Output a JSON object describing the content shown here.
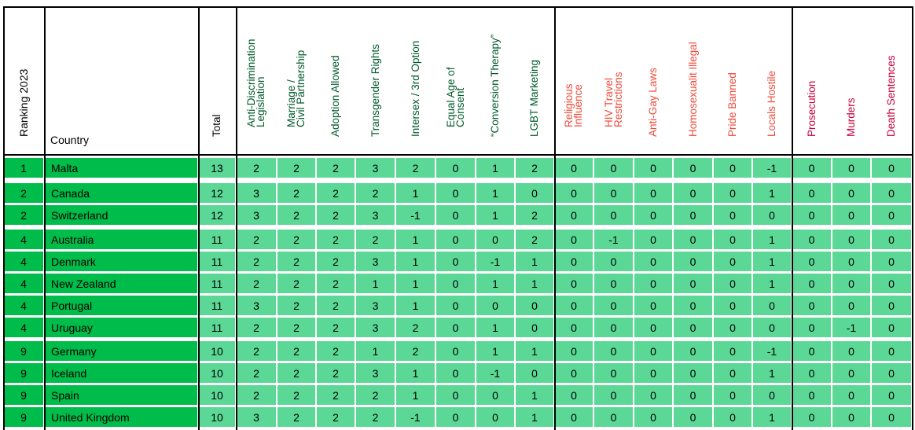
{
  "colors": {
    "dark_green": "#00BC4A",
    "light_green": "#5BD896",
    "header_green": "#005A2A",
    "header_orange": "#F04A3A",
    "header_crimson": "#C8003C"
  },
  "columns": [
    {
      "label": "Ranking 2023",
      "color": "#000000"
    },
    {
      "label": "Country",
      "color": "#000000"
    },
    {
      "label": "Total",
      "color": "#000000"
    },
    {
      "label": "Anti-Discrimination\nLegislation",
      "color": "#005A2A"
    },
    {
      "label": "Marriage /\nCivil Partnership",
      "color": "#005A2A"
    },
    {
      "label": "Adoption Allowed",
      "color": "#005A2A"
    },
    {
      "label": "Transgender Rights",
      "color": "#005A2A"
    },
    {
      "label": "Intersex / 3rd Option",
      "color": "#005A2A"
    },
    {
      "label": "Equal Age of\nConsent",
      "color": "#005A2A"
    },
    {
      "label": "“Conversion Therapy”",
      "color": "#005A2A"
    },
    {
      "label": "LGBT Marketing",
      "color": "#005A2A"
    },
    {
      "label": "Religious\nInfluence",
      "color": "#F04A3A"
    },
    {
      "label": "HIV Travel\nRestrictions",
      "color": "#F04A3A"
    },
    {
      "label": "Anti-Gay Laws",
      "color": "#F04A3A"
    },
    {
      "label": "Homosexualit Illegal",
      "color": "#F04A3A"
    },
    {
      "label": "Pride Banned",
      "color": "#F04A3A"
    },
    {
      "label": "Locals Hostile",
      "color": "#F04A3A"
    },
    {
      "label": "Prosecution",
      "color": "#C8003C"
    },
    {
      "label": "Murders",
      "color": "#C8003C"
    },
    {
      "label": "Death Sentences",
      "color": "#C8003C"
    }
  ],
  "rows": [
    {
      "rank": "1",
      "country": "Malta",
      "total": "13",
      "values": [
        "2",
        "2",
        "2",
        "3",
        "2",
        "0",
        "1",
        "2",
        "0",
        "0",
        "0",
        "0",
        "0",
        "-1",
        "0",
        "0",
        "0"
      ]
    },
    {
      "rank": "2",
      "country": "Canada",
      "total": "12",
      "values": [
        "3",
        "2",
        "2",
        "2",
        "1",
        "0",
        "1",
        "0",
        "0",
        "0",
        "0",
        "0",
        "0",
        "1",
        "0",
        "0",
        "0"
      ]
    },
    {
      "rank": "2",
      "country": "Switzerland",
      "total": "12",
      "values": [
        "3",
        "2",
        "2",
        "3",
        "-1",
        "0",
        "1",
        "2",
        "0",
        "0",
        "0",
        "0",
        "0",
        "0",
        "0",
        "0",
        "0"
      ]
    },
    {
      "rank": "4",
      "country": "Australia",
      "total": "11",
      "values": [
        "2",
        "2",
        "2",
        "2",
        "1",
        "0",
        "0",
        "2",
        "0",
        "-1",
        "0",
        "0",
        "0",
        "1",
        "0",
        "0",
        "0"
      ]
    },
    {
      "rank": "4",
      "country": "Denmark",
      "total": "11",
      "values": [
        "2",
        "2",
        "2",
        "3",
        "1",
        "0",
        "-1",
        "1",
        "0",
        "0",
        "0",
        "0",
        "0",
        "1",
        "0",
        "0",
        "0"
      ]
    },
    {
      "rank": "4",
      "country": "New Zealand",
      "total": "11",
      "values": [
        "2",
        "2",
        "2",
        "1",
        "1",
        "0",
        "1",
        "1",
        "0",
        "0",
        "0",
        "0",
        "0",
        "1",
        "0",
        "0",
        "0"
      ]
    },
    {
      "rank": "4",
      "country": "Portugal",
      "total": "11",
      "values": [
        "3",
        "2",
        "2",
        "3",
        "1",
        "0",
        "0",
        "0",
        "0",
        "0",
        "0",
        "0",
        "0",
        "0",
        "0",
        "0",
        "0"
      ]
    },
    {
      "rank": "4",
      "country": "Uruguay",
      "total": "11",
      "values": [
        "2",
        "2",
        "2",
        "3",
        "2",
        "0",
        "1",
        "0",
        "0",
        "0",
        "0",
        "0",
        "0",
        "0",
        "0",
        "-1",
        "0"
      ]
    },
    {
      "rank": "9",
      "country": "Germany",
      "total": "10",
      "values": [
        "2",
        "2",
        "2",
        "1",
        "2",
        "0",
        "1",
        "1",
        "0",
        "0",
        "0",
        "0",
        "0",
        "-1",
        "0",
        "0",
        "0"
      ]
    },
    {
      "rank": "9",
      "country": "Iceland",
      "total": "10",
      "values": [
        "2",
        "2",
        "2",
        "3",
        "1",
        "0",
        "-1",
        "0",
        "0",
        "0",
        "0",
        "0",
        "0",
        "1",
        "0",
        "0",
        "0"
      ]
    },
    {
      "rank": "9",
      "country": "Spain",
      "total": "10",
      "values": [
        "2",
        "2",
        "2",
        "2",
        "1",
        "0",
        "0",
        "1",
        "0",
        "0",
        "0",
        "0",
        "0",
        "0",
        "0",
        "0",
        "0"
      ]
    },
    {
      "rank": "9",
      "country": "United Kingdom",
      "total": "10",
      "values": [
        "3",
        "2",
        "2",
        "2",
        "-1",
        "0",
        "0",
        "1",
        "0",
        "0",
        "0",
        "0",
        "0",
        "1",
        "0",
        "0",
        "0"
      ]
    }
  ]
}
